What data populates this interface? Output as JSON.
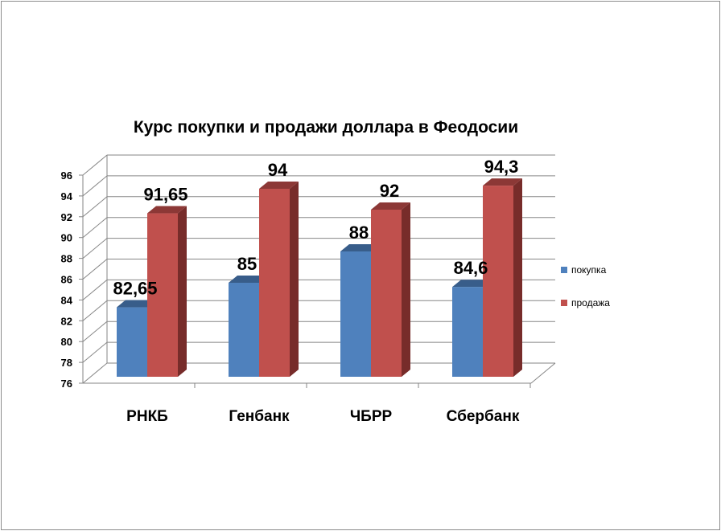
{
  "chart_data": {
    "type": "bar",
    "title": "Курс покупки и продажи доллара в Феодосии",
    "categories": [
      "РНКБ",
      "Генбанк",
      "ЧБРР",
      "Сбербанк"
    ],
    "series": [
      {
        "name": "покупка",
        "values": [
          82.65,
          85,
          88,
          84.6
        ],
        "labels": [
          "82,65",
          "85",
          "88",
          "84,6"
        ],
        "color": "#4f81bd"
      },
      {
        "name": "продажа",
        "values": [
          91.65,
          94,
          92,
          94.3
        ],
        "labels": [
          "91,65",
          "94",
          "92",
          "94,3"
        ],
        "color": "#c0504d"
      }
    ],
    "yticks": [
      "76",
      "78",
      "80",
      "82",
      "84",
      "86",
      "88",
      "90",
      "92",
      "94",
      "96"
    ],
    "ylim": [
      76,
      96
    ],
    "grid": true,
    "legend": "right",
    "xlabel": "",
    "ylabel": ""
  }
}
